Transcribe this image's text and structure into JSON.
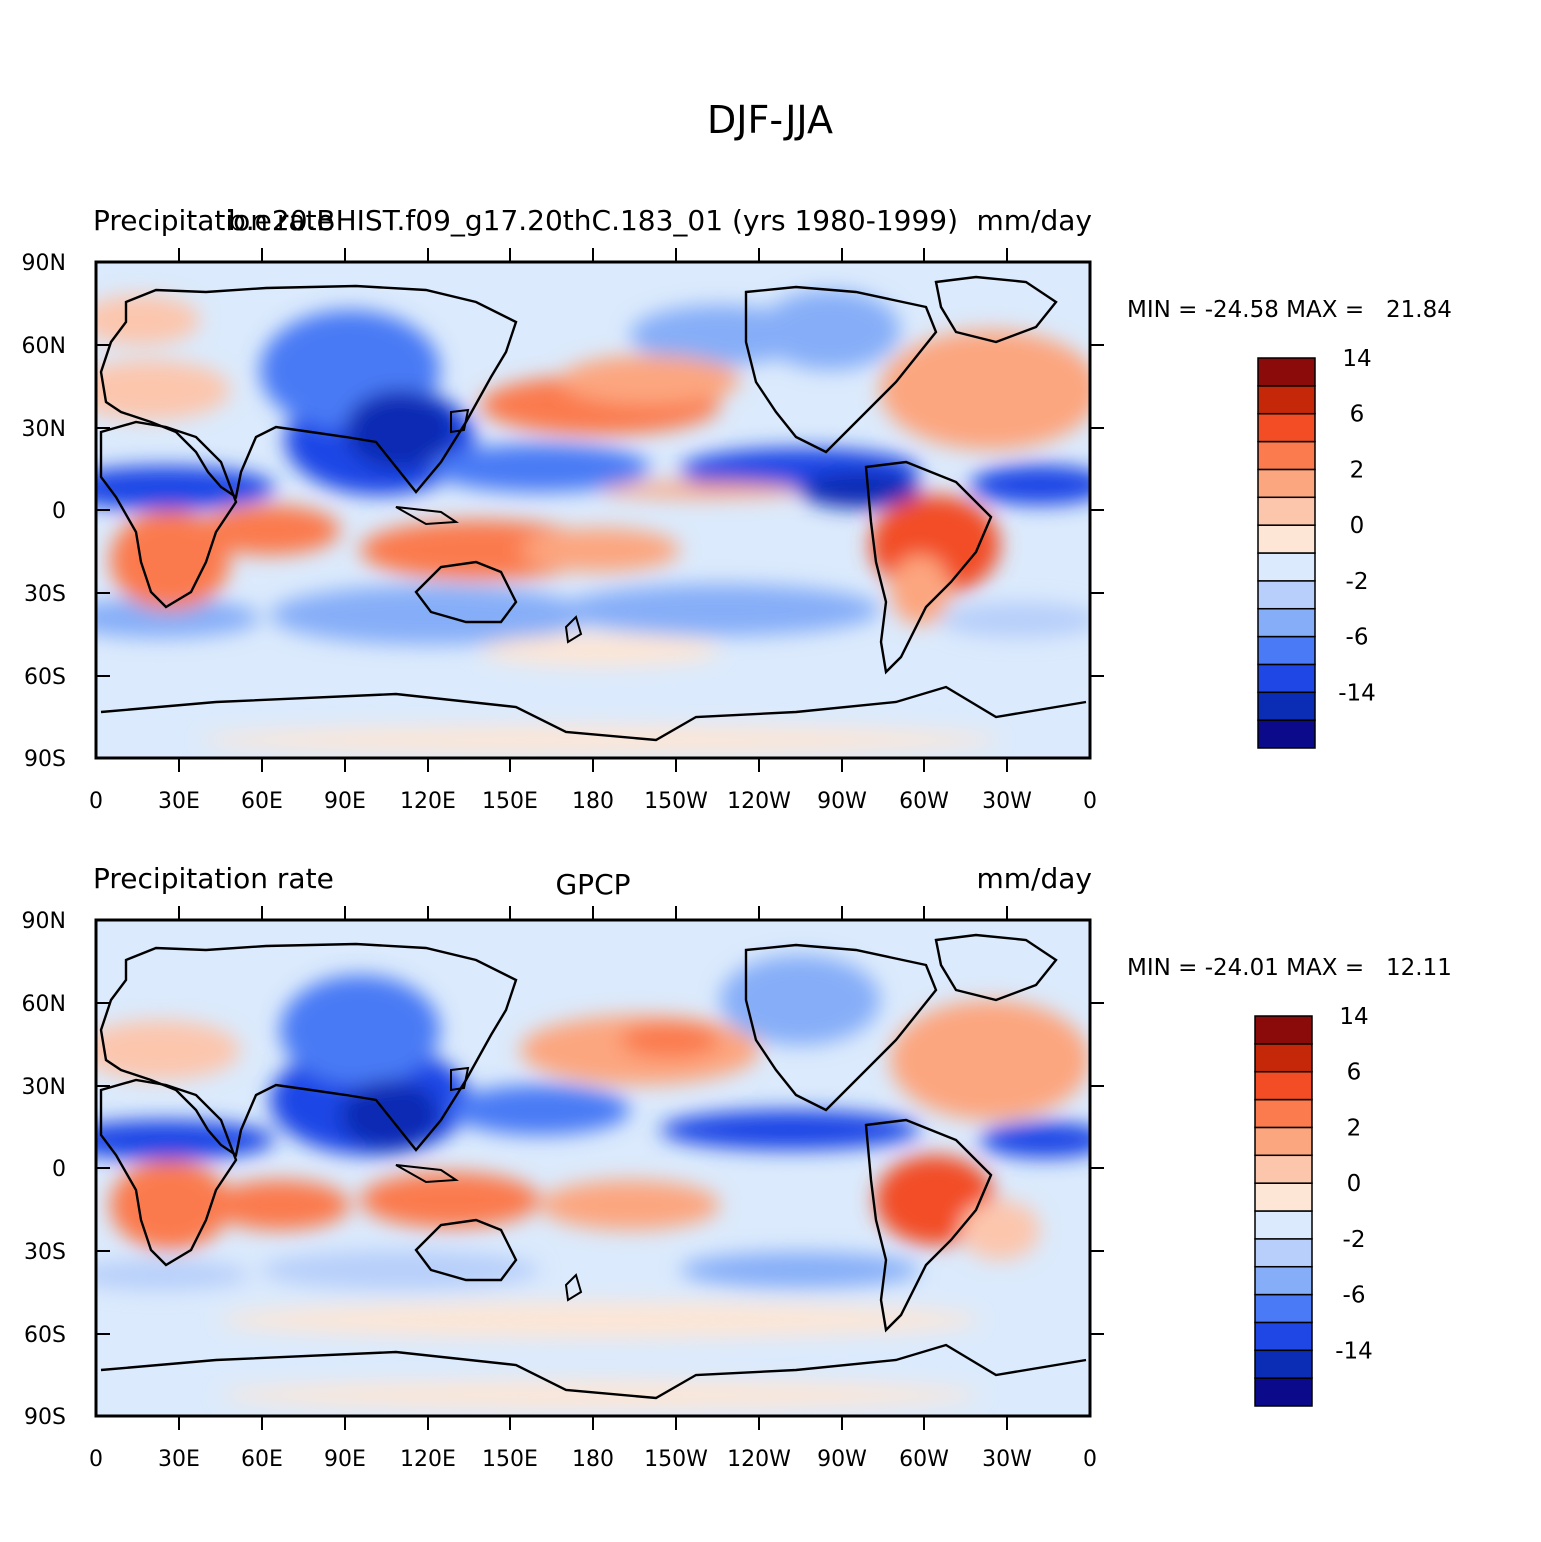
{
  "title": "DJF-JJA",
  "panels": [
    {
      "left_title": "Precipitation rate",
      "center_title": "b.e20.BHIST.f09_g17.20thC.183_01 (yrs 1980-1999)",
      "right_title": "mm/day",
      "min_max": "MIN = -24.58 MAX =   21.84"
    },
    {
      "left_title": "Precipitation rate",
      "center_title": "GPCP",
      "right_title": "mm/day",
      "min_max": "MIN = -24.01 MAX =   12.11"
    }
  ],
  "lat_labels": [
    "90N",
    "60N",
    "30N",
    "0",
    "30S",
    "60S",
    "90S"
  ],
  "lon_labels": [
    "0",
    "30E",
    "60E",
    "90E",
    "120E",
    "150E",
    "180",
    "150W",
    "120W",
    "90W",
    "60W",
    "30W",
    "0"
  ],
  "colorbar": {
    "colors": [
      "#0a0a8a",
      "#0b2cb4",
      "#1f47e6",
      "#4a7af5",
      "#86aef8",
      "#b7cffa",
      "#dbeafc",
      "#fde6d6",
      "#fcc6ad",
      "#fca67f",
      "#fb7a4e",
      "#f24d25",
      "#c42808",
      "#8b0a0a"
    ],
    "labels": [
      "-14",
      "-6",
      "-2",
      "0",
      "2",
      "6",
      "14"
    ]
  }
}
